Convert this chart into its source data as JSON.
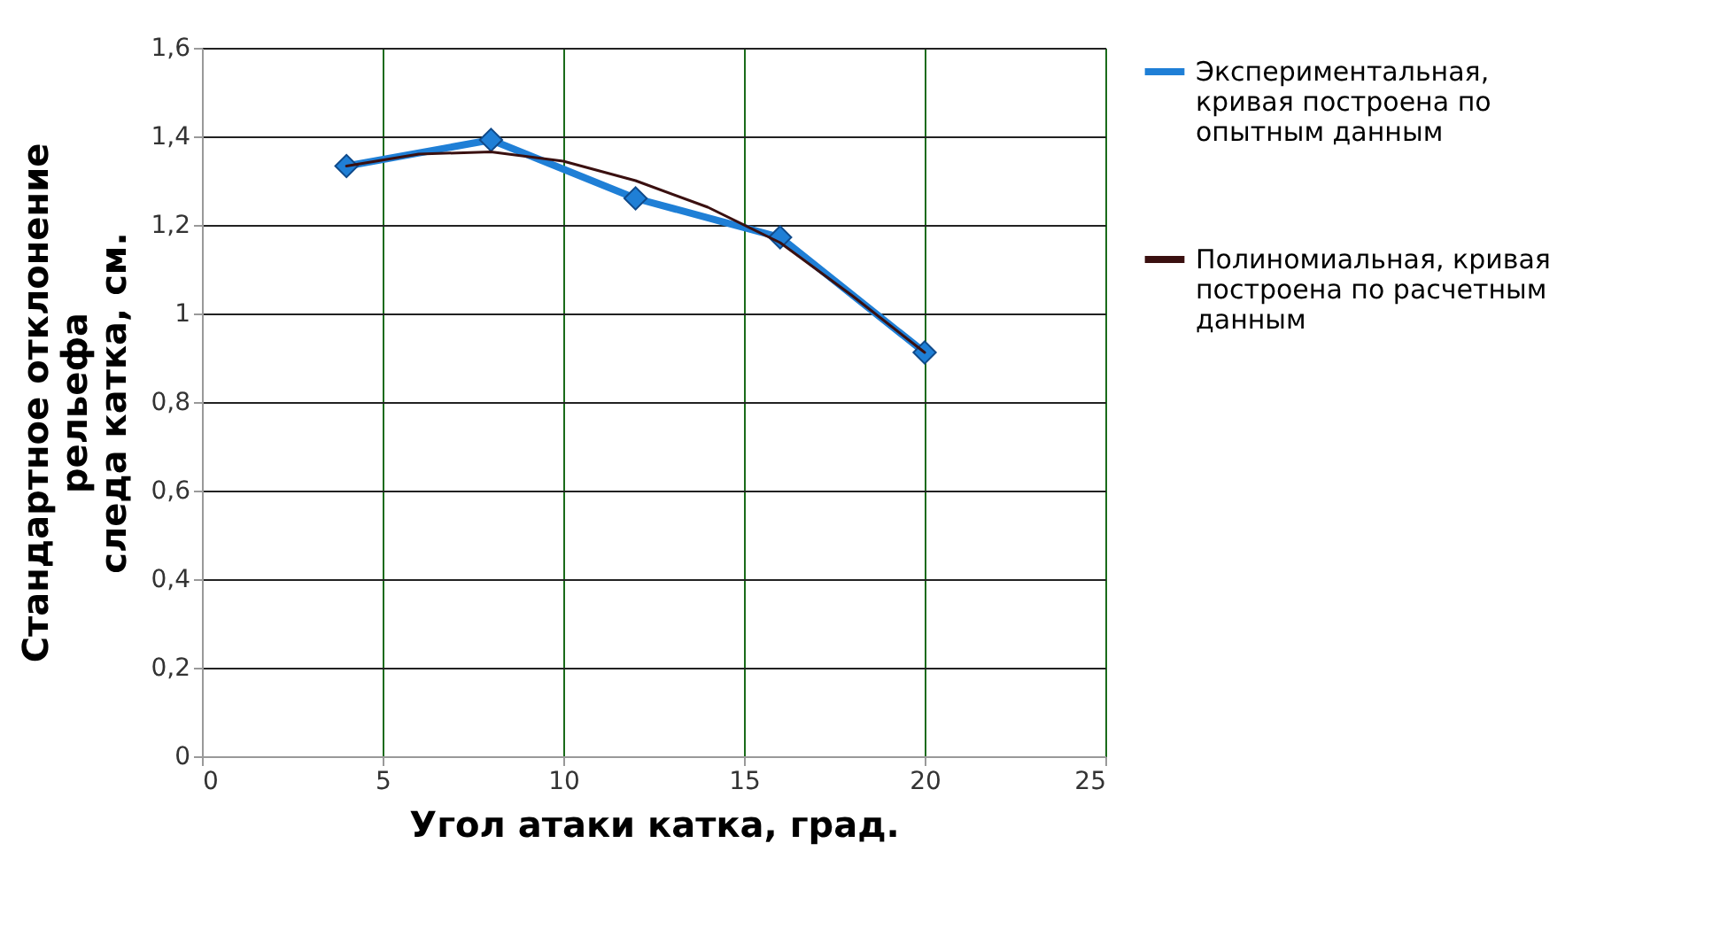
{
  "chart_data": {
    "type": "line",
    "xlabel": "Угол атаки  катка, град.",
    "ylabel": "Стандартное отклонение\nрельефа\nследа катка, см.",
    "xlim": [
      0,
      25
    ],
    "xticks": [
      0,
      5,
      10,
      15,
      20,
      25
    ],
    "ylim": [
      0,
      1.6
    ],
    "yticks": [
      0,
      {
        "value": 0.2,
        "label": "0,2"
      },
      {
        "value": 0.4,
        "label": "0,4"
      },
      {
        "value": 0.6,
        "label": "0,6"
      },
      {
        "value": 0.8,
        "label": "0,8"
      },
      1,
      {
        "value": 1.2,
        "label": "1,2"
      },
      {
        "value": 1.4,
        "label": "1,4"
      },
      {
        "value": 1.6,
        "label": "1,6"
      }
    ],
    "grid": true,
    "legend": "right",
    "series": [
      {
        "name": "Экспериментальная,\nкривая построена по\nопытным данным",
        "color": "#1f7fd6",
        "marker": "diamond",
        "x": [
          4,
          8,
          12,
          16,
          20
        ],
        "values": [
          1.333,
          1.392,
          1.26,
          1.172,
          0.912
        ]
      },
      {
        "name": "Полиномиальная, кривая\nпостроена по расчетным\nданным",
        "color": "#3a1010",
        "marker": "none",
        "x": [
          4,
          6,
          8,
          10,
          12,
          14,
          16,
          18,
          20
        ],
        "values": [
          1.333,
          1.36,
          1.365,
          1.344,
          1.3,
          1.24,
          1.16,
          1.04,
          0.912
        ]
      }
    ]
  }
}
